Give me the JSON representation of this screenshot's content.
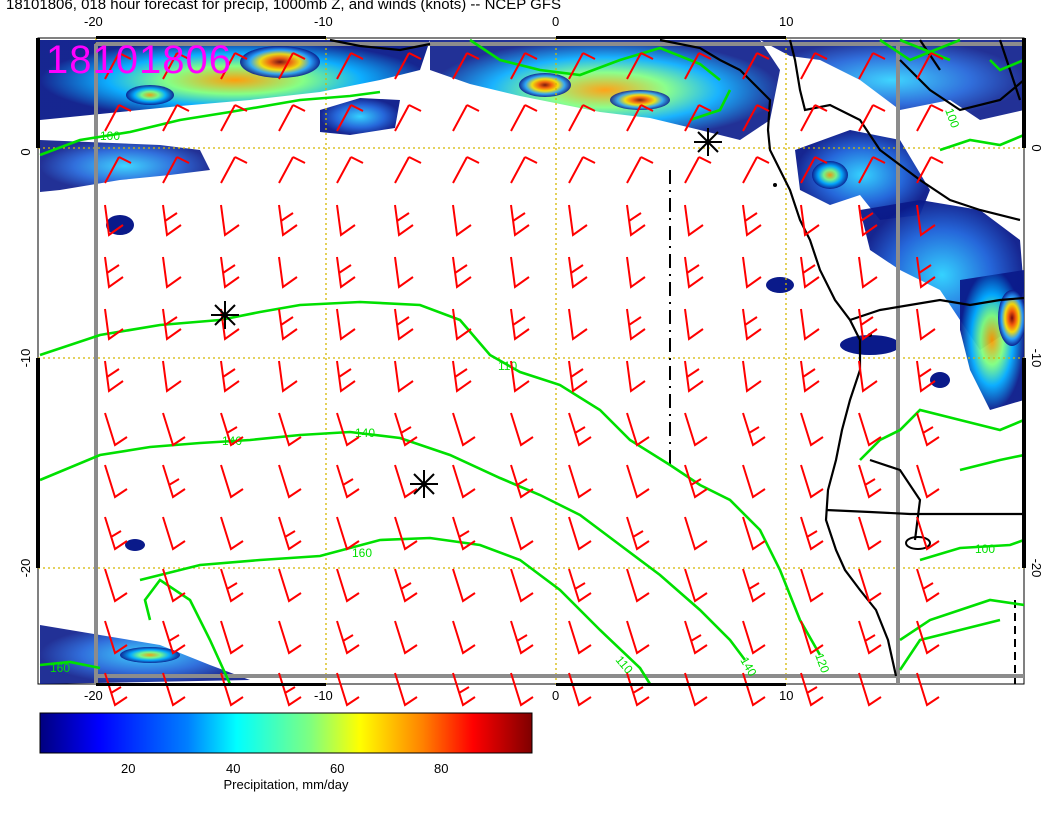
{
  "title": "18101806, 018 hour forecast for precip, 1000mb Z, and winds (knots) -- NCEP GFS",
  "stamp": "18101806",
  "axes": {
    "lon_ticks": [
      "-20",
      "-10",
      "0",
      "10"
    ],
    "lat_ticks": [
      "0",
      "-10",
      "-20"
    ]
  },
  "contours": [
    {
      "label": "100"
    },
    {
      "label": "110"
    },
    {
      "label": "140"
    },
    {
      "label": "140"
    },
    {
      "label": "160"
    },
    {
      "label": "110"
    },
    {
      "label": "140"
    },
    {
      "label": "120"
    },
    {
      "label": "100"
    },
    {
      "label": "100"
    },
    {
      "label": "160"
    }
  ],
  "colorbar": {
    "label": "Precipitation, mm/day",
    "ticks": [
      "20",
      "40",
      "60",
      "80"
    ],
    "colors": [
      "#00007f",
      "#0000ff",
      "#007fff",
      "#00ffff",
      "#7fff7f",
      "#ffff00",
      "#ff7f00",
      "#ff0000",
      "#7f0000"
    ]
  },
  "colors": {
    "wind_barb": "#ff0000",
    "contour": "#00e000",
    "coast": "#000000",
    "grid": "#d4b800",
    "stamp": "#ff00ff"
  },
  "markers": [
    "low-marker",
    "low-marker",
    "low-marker"
  ]
}
